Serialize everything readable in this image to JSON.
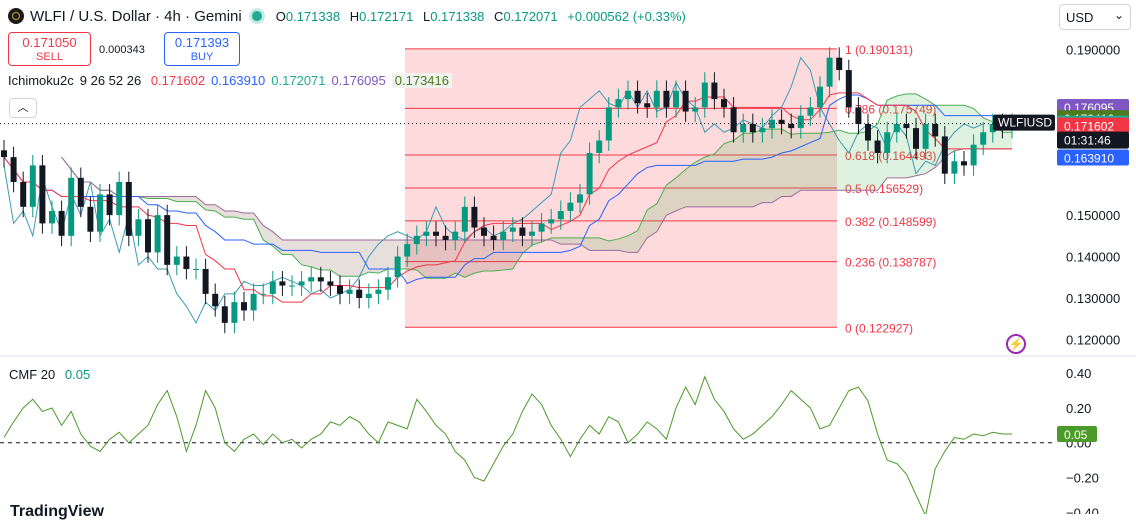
{
  "header": {
    "title": "WLFI / U.S. Dollar · 4h · Gemini",
    "ohlc": [
      {
        "key": "O",
        "value": "0.171338"
      },
      {
        "key": "H",
        "value": "0.172171"
      },
      {
        "key": "L",
        "value": "0.171338"
      },
      {
        "key": "C",
        "value": "0.172071"
      }
    ],
    "change": "+0.000562 (+0.33%)"
  },
  "trade": {
    "sell_price": "0.171050",
    "sell_label": "SELL",
    "spread": "0.000343",
    "buy_price": "0.171393",
    "buy_label": "BUY"
  },
  "ichimoku": {
    "name": "Ichimoku2c",
    "params": "9 26 52 26",
    "values": [
      "0.171602",
      "0.163910",
      "0.172071",
      "0.176095",
      "0.173416"
    ],
    "colors": [
      "#f23645",
      "#2962ff",
      "#22ab94",
      "#7e57c2",
      "#4c7a1c"
    ]
  },
  "cmf": {
    "name": "CMF",
    "period": "20",
    "value": "0.05"
  },
  "currency": "USD",
  "watermark": "TradingView",
  "chart_data": [
    {
      "type": "candlestick",
      "title": "WLFI / U.S. Dollar · 4h · Gemini",
      "symbol": "WLFIUSD",
      "ylim": [
        0.116,
        0.1995
      ],
      "y_ticks": [
        "0.190000",
        "0.150000",
        "0.140000",
        "0.130000",
        "0.120000"
      ],
      "y_tick_values": [
        0.19,
        0.15,
        0.14,
        0.13,
        0.12
      ],
      "last_price": 0.172071,
      "countdown": "01:31:46",
      "closes": [
        0.164,
        0.158,
        0.152,
        0.162,
        0.148,
        0.151,
        0.145,
        0.159,
        0.152,
        0.146,
        0.155,
        0.15,
        0.158,
        0.145,
        0.149,
        0.141,
        0.15,
        0.138,
        0.14,
        0.137,
        0.137,
        0.131,
        0.128,
        0.124,
        0.129,
        0.127,
        0.131,
        0.131,
        0.134,
        0.133,
        0.133,
        0.134,
        0.135,
        0.134,
        0.133,
        0.131,
        0.132,
        0.13,
        0.131,
        0.132,
        0.135,
        0.14,
        0.143,
        0.145,
        0.146,
        0.145,
        0.144,
        0.146,
        0.152,
        0.147,
        0.145,
        0.144,
        0.146,
        0.147,
        0.145,
        0.146,
        0.148,
        0.149,
        0.151,
        0.153,
        0.155,
        0.165,
        0.168,
        0.176,
        0.178,
        0.18,
        0.177,
        0.176,
        0.18,
        0.176,
        0.18,
        0.175,
        0.176,
        0.182,
        0.178,
        0.176,
        0.17,
        0.172,
        0.17,
        0.171,
        0.173,
        0.172,
        0.171,
        0.174,
        0.176,
        0.181,
        0.188,
        0.185,
        0.176,
        0.172,
        0.168,
        0.165,
        0.17,
        0.172,
        0.171,
        0.166,
        0.172,
        0.169,
        0.16,
        0.163,
        0.162,
        0.167,
        0.17,
        0.172,
        0.171,
        0.172
      ],
      "fibonacci": {
        "levels": [
          {
            "label": "1 (0.190131)",
            "value": 0.190131
          },
          {
            "label": "0.786 (0.175749)",
            "value": 0.175749
          },
          {
            "label": "0.618 (0.164493)",
            "value": 0.164493
          },
          {
            "label": "0.5 (0.156529)",
            "value": 0.156529
          },
          {
            "label": "0.382 (0.148599)",
            "value": 0.148599
          },
          {
            "label": "0.236 (0.138787)",
            "value": 0.138787
          },
          {
            "label": "0 (0.122927)",
            "value": 0.122927
          }
        ],
        "color": "#f23645"
      },
      "price_badges": [
        {
          "text": "0.176095",
          "value": 0.176095,
          "color": "#7e57c2"
        },
        {
          "text": "0.173416",
          "value": 0.173416,
          "color": "#4c7a1c"
        },
        {
          "text": "0.172071",
          "value": 0.172071,
          "color": "#22ab94"
        },
        {
          "text": "0.171602",
          "value": 0.171602,
          "color": "#f23645"
        },
        {
          "text": "0.163910",
          "value": 0.16391,
          "color": "#2962ff"
        }
      ],
      "colors": {
        "up": "#089981",
        "down": "#131722",
        "lagging": "#3a9bb3",
        "conversion": "#f23645",
        "base": "#2962ff"
      }
    },
    {
      "type": "line",
      "name": "CMF 20",
      "ylim": [
        -0.41,
        0.43
      ],
      "y_ticks": [
        "0.40",
        "0.20",
        "0.00",
        "−0.20",
        "−0.40"
      ],
      "y_tick_values": [
        0.4,
        0.2,
        0.0,
        -0.2,
        -0.4
      ],
      "zero_line": true,
      "last_value": 0.05,
      "values": [
        0.03,
        0.12,
        0.2,
        0.25,
        0.18,
        0.2,
        0.1,
        0.18,
        0.05,
        -0.02,
        -0.05,
        0.02,
        0.06,
        0.0,
        0.05,
        0.1,
        0.22,
        0.3,
        0.15,
        -0.05,
        0.1,
        0.3,
        0.2,
        0.0,
        -0.05,
        0.02,
        0.05,
        -0.01,
        0.05,
        0.0,
        0.02,
        -0.03,
        0.02,
        0.05,
        0.12,
        0.1,
        0.15,
        0.12,
        0.05,
        0.0,
        0.12,
        0.1,
        0.08,
        0.25,
        0.18,
        0.1,
        0.05,
        -0.05,
        -0.1,
        -0.2,
        -0.22,
        -0.12,
        -0.02,
        0.05,
        0.18,
        0.28,
        0.22,
        0.1,
        0.02,
        -0.08,
        0.02,
        0.1,
        0.05,
        0.15,
        0.12,
        0.0,
        0.05,
        0.12,
        0.08,
        0.02,
        0.2,
        0.32,
        0.22,
        0.38,
        0.25,
        0.18,
        0.08,
        0.02,
        0.05,
        0.1,
        0.15,
        0.22,
        0.3,
        0.25,
        0.2,
        0.08,
        0.1,
        0.2,
        0.3,
        0.32,
        0.24,
        0.05,
        -0.1,
        -0.12,
        -0.18,
        -0.3,
        -0.42,
        -0.15,
        -0.05,
        0.03,
        0.02,
        0.05,
        0.04,
        0.06,
        0.05,
        0.05
      ]
    }
  ]
}
